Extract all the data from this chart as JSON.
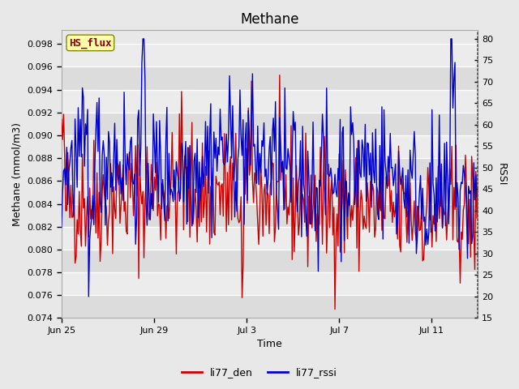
{
  "title": "Methane",
  "xlabel": "Time",
  "ylabel_left": "Methane (mmol/m3)",
  "ylabel_right": "RSSI",
  "ylim_left": [
    0.074,
    0.0992
  ],
  "ylim_right": [
    15,
    82
  ],
  "yticks_left": [
    0.074,
    0.076,
    0.078,
    0.08,
    0.082,
    0.084,
    0.086,
    0.088,
    0.09,
    0.092,
    0.094,
    0.096,
    0.098
  ],
  "yticks_right": [
    15,
    20,
    25,
    30,
    35,
    40,
    45,
    50,
    55,
    60,
    65,
    70,
    75,
    80
  ],
  "xtick_labels": [
    "Jun 25",
    "Jun 29",
    "Jul 3",
    "Jul 7",
    "Jul 11"
  ],
  "line1_color": "#cc0000",
  "line2_color": "#0000cc",
  "line1_label": "li77_den",
  "line2_label": "li77_rssi",
  "annotation_text": "HS_flux",
  "annotation_color": "#880000",
  "annotation_bg": "#ffffaa",
  "annotation_edge": "#888800",
  "bg_color": "#e8e8e8",
  "band_dark": "#dcdcdc",
  "band_light": "#ececec",
  "n_points": 400,
  "seed": 42
}
